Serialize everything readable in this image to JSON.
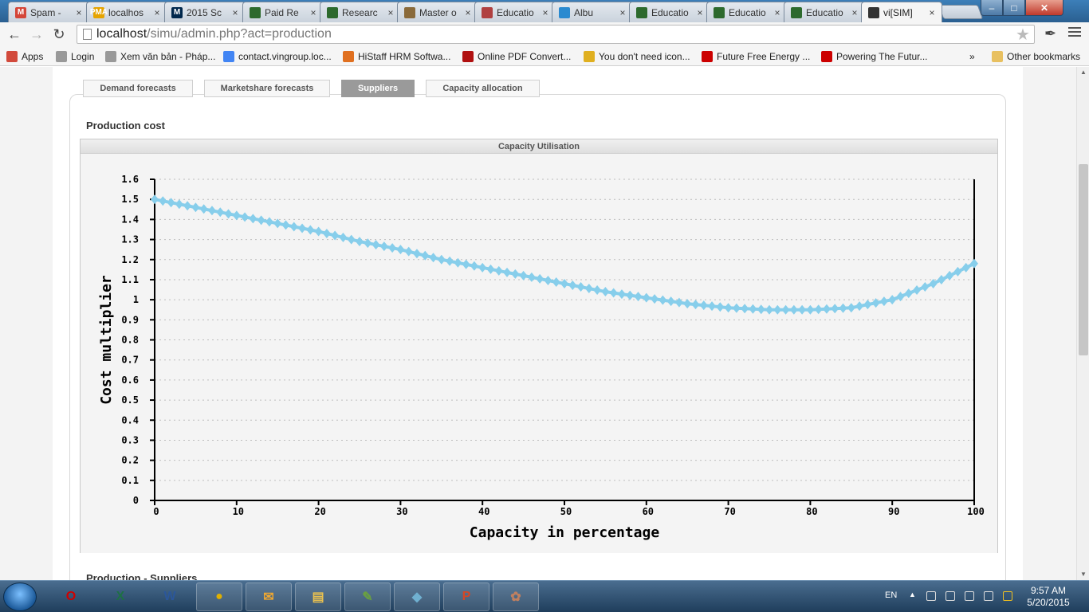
{
  "browser": {
    "tabs": [
      {
        "label": "Spam -",
        "icon": "gmail-icon",
        "icon_text": "M",
        "icon_color": "#d44638"
      },
      {
        "label": "localhos",
        "icon": "pma-icon",
        "icon_text": "PMA",
        "icon_color": "#e6a400"
      },
      {
        "label": "2015 Sc",
        "icon": "michigan-icon",
        "icon_text": "M",
        "icon_color": "#00274c"
      },
      {
        "label": "Paid Re",
        "icon": "shield-icon",
        "icon_text": "",
        "icon_color": "#2d6a2d"
      },
      {
        "label": "Researc",
        "icon": "shield-icon",
        "icon_text": "",
        "icon_color": "#2d6a2d"
      },
      {
        "label": "Master o",
        "icon": "building-icon",
        "icon_text": "",
        "icon_color": "#8a6a3a"
      },
      {
        "label": "Educatio",
        "icon": "book-icon",
        "icon_text": "",
        "icon_color": "#b04040"
      },
      {
        "label": "Albu",
        "icon": "album-icon",
        "icon_text": "",
        "icon_color": "#2a8ad0"
      },
      {
        "label": "Educatio",
        "icon": "shield-icon",
        "icon_text": "",
        "icon_color": "#2d6a2d"
      },
      {
        "label": "Educatio",
        "icon": "shield-icon",
        "icon_text": "",
        "icon_color": "#2d6a2d"
      },
      {
        "label": "Educatio",
        "icon": "shield-icon",
        "icon_text": "",
        "icon_color": "#2d6a2d"
      },
      {
        "label": "vi[SIM]",
        "icon": "chart-icon",
        "icon_text": "",
        "icon_color": "#333333",
        "active": true
      }
    ],
    "url_host": "localhost",
    "url_path": "/simu/admin.php?act=production",
    "bookmarks": [
      {
        "label": "Apps",
        "icon": "apps-icon",
        "color": "#d24a3c"
      },
      {
        "label": "Login",
        "icon": "page-icon",
        "color": "#999999"
      },
      {
        "label": "Xem văn bản - Pháp...",
        "icon": "page-icon",
        "color": "#999999"
      },
      {
        "label": "contact.vingroup.loc...",
        "icon": "google-icon",
        "color": "#4285f4"
      },
      {
        "label": "HiStaff HRM Softwa...",
        "icon": "check-icon",
        "color": "#e07020"
      },
      {
        "label": "Online PDF Convert...",
        "icon": "pdf-icon",
        "color": "#b01010"
      },
      {
        "label": "You don't need icon...",
        "icon": "hand-icon",
        "color": "#e0b020"
      },
      {
        "label": "Future Free Energy ...",
        "icon": "youtube-icon",
        "color": "#cc0000"
      },
      {
        "label": "Powering The Futur...",
        "icon": "youtube-icon",
        "color": "#cc0000"
      }
    ],
    "bookmarks_more": "»",
    "other_bookmarks": "Other bookmarks"
  },
  "page": {
    "subtabs": [
      {
        "label": "Demand forecasts",
        "active": false
      },
      {
        "label": "Marketshare forecasts",
        "active": false
      },
      {
        "label": "Suppliers",
        "active": true
      },
      {
        "label": "Capacity allocation",
        "active": false
      }
    ],
    "section_title": "Production cost",
    "chart_title": "Capacity Utilisation",
    "section_title_2": "Production - Suppliers"
  },
  "chart_data": {
    "type": "line",
    "title": "Capacity Utilisation",
    "xlabel": "Capacity in percentage",
    "ylabel": "Cost multiplier",
    "xlim": [
      0,
      100
    ],
    "ylim": [
      0,
      1.6
    ],
    "x_ticks": [
      0,
      10,
      20,
      30,
      40,
      50,
      60,
      70,
      80,
      90,
      100
    ],
    "y_ticks": [
      "0",
      "0.1",
      "0.2",
      "0.3",
      "0.4",
      "0.5",
      "0.6",
      "0.7",
      "0.8",
      "0.9",
      "1",
      "1.1",
      "1.2",
      "1.3",
      "1.4",
      "1.5",
      "1.6"
    ],
    "grid": true,
    "series_color": "#87ceeb",
    "x": [
      0,
      5,
      10,
      15,
      20,
      25,
      30,
      35,
      40,
      45,
      50,
      55,
      60,
      65,
      70,
      75,
      80,
      85,
      90,
      95,
      100
    ],
    "y": [
      1.5,
      1.46,
      1.42,
      1.38,
      1.34,
      1.29,
      1.25,
      1.2,
      1.16,
      1.12,
      1.08,
      1.04,
      1.01,
      0.98,
      0.96,
      0.95,
      0.95,
      0.96,
      1.0,
      1.08,
      1.18
    ]
  },
  "taskbar": {
    "apps": [
      {
        "name": "opera-icon",
        "glyph": "O",
        "color": "#d00000"
      },
      {
        "name": "excel-icon",
        "glyph": "X",
        "color": "#1d7044"
      },
      {
        "name": "word-icon",
        "glyph": "W",
        "color": "#2b579a"
      },
      {
        "name": "chrome-icon",
        "glyph": "●",
        "color": "#e0b000"
      },
      {
        "name": "outlook-icon",
        "glyph": "✉",
        "color": "#f0a830"
      },
      {
        "name": "explorer-icon",
        "glyph": "▤",
        "color": "#e8c050"
      },
      {
        "name": "notepad-icon",
        "glyph": "✎",
        "color": "#6aa040"
      },
      {
        "name": "paint-icon",
        "glyph": "◆",
        "color": "#70b0d0"
      },
      {
        "name": "powerpoint-icon",
        "glyph": "P",
        "color": "#d24726"
      },
      {
        "name": "palette-icon",
        "glyph": "✿",
        "color": "#c08060"
      }
    ],
    "lang": "EN",
    "time": "9:57 AM",
    "date": "5/20/2015"
  }
}
